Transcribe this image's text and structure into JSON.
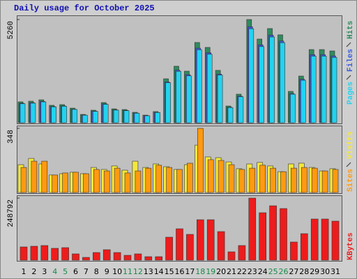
{
  "title": "Daily usage for October 2025",
  "chart_data": [
    {
      "type": "bar",
      "ylim": [
        0,
        5260
      ],
      "yticks": [
        5260
      ],
      "series": [
        {
          "name": "Hits",
          "color": "#2f8a5e",
          "values": [
            1066,
            1100,
            1170,
            890,
            925,
            746,
            426,
            640,
            1030,
            710,
            675,
            533,
            390,
            570,
            2240,
            2880,
            2630,
            4090,
            3840,
            2670,
            853,
            1457,
            5260,
            4265,
            4800,
            4480,
            1600,
            2380,
            3730,
            3730,
            3660
          ]
        },
        {
          "name": "Files",
          "color": "#3b5bdb",
          "values": [
            990,
            1020,
            1090,
            830,
            860,
            690,
            395,
            595,
            960,
            660,
            630,
            495,
            365,
            530,
            2080,
            2680,
            2450,
            3800,
            3570,
            2480,
            795,
            1355,
            4890,
            3970,
            4465,
            4165,
            1490,
            2215,
            3470,
            3470,
            3405
          ]
        },
        {
          "name": "Pages",
          "color": "#22d3f0",
          "values": [
            970,
            1000,
            1065,
            810,
            840,
            680,
            385,
            580,
            940,
            645,
            615,
            485,
            355,
            520,
            2040,
            2620,
            2390,
            3720,
            3490,
            2430,
            775,
            1325,
            4790,
            3880,
            4370,
            4080,
            1455,
            2165,
            3395,
            3395,
            3330
          ]
        }
      ]
    },
    {
      "type": "bar",
      "ylim": [
        0,
        348
      ],
      "yticks": [
        348
      ],
      "series": [
        {
          "name": "Visits",
          "color": "#f5e83a",
          "values": [
            151,
            185,
            155,
            95,
            102,
            110,
            102,
            136,
            125,
            144,
            121,
            170,
            136,
            155,
            140,
            125,
            151,
            257,
            193,
            189,
            166,
            129,
            155,
            163,
            144,
            113,
            155,
            159,
            136,
            117,
            129
          ]
        },
        {
          "name": "Sites",
          "color": "#ff9a10",
          "values": [
            136,
            170,
            170,
            95,
            106,
            110,
            102,
            125,
            117,
            132,
            106,
            117,
            132,
            148,
            136,
            125,
            159,
            348,
            178,
            174,
            151,
            125,
            132,
            148,
            132,
            113,
            132,
            136,
            132,
            117,
            125
          ]
        }
      ]
    },
    {
      "type": "bar",
      "ylim": [
        0,
        248792
      ],
      "yticks": [
        248792
      ],
      "categories": [
        "1",
        "2",
        "3",
        "4",
        "5",
        "6",
        "7",
        "8",
        "9",
        "10",
        "11",
        "12",
        "13",
        "14",
        "15",
        "16",
        "17",
        "18",
        "19",
        "20",
        "21",
        "22",
        "23",
        "24",
        "25",
        "26",
        "27",
        "28",
        "29",
        "30",
        "31"
      ],
      "category_colors": [
        "#000",
        "#000",
        "#000",
        "#1a8a4a",
        "#1a8a4a",
        "#000",
        "#000",
        "#000",
        "#000",
        "#000",
        "#1a8a4a",
        "#1a8a4a",
        "#000",
        "#000",
        "#000",
        "#000",
        "#000",
        "#1a8a4a",
        "#1a8a4a",
        "#000",
        "#000",
        "#000",
        "#000",
        "#000",
        "#1a8a4a",
        "#1a8a4a",
        "#000",
        "#000",
        "#000",
        "#000",
        "#000"
      ],
      "series": [
        {
          "name": "KBytes",
          "color": "#ee1c1c",
          "values": [
            53100,
            55900,
            58700,
            47500,
            50300,
            25200,
            11200,
            30700,
            41900,
            30700,
            19600,
            25200,
            14000,
            14000,
            92200,
            125800,
            103400,
            162100,
            162100,
            114600,
            33500,
            58700,
            248792,
            190100,
            218000,
            206900,
            72700,
            106200,
            164900,
            164900,
            156500
          ]
        }
      ]
    }
  ]
}
